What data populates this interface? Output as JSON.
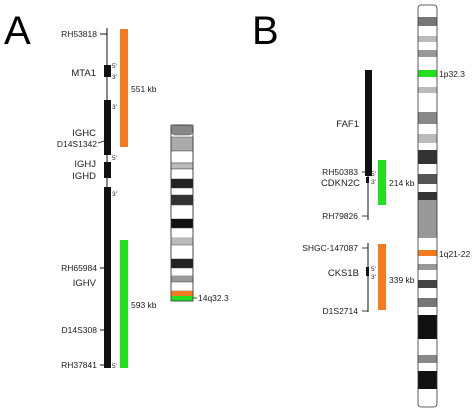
{
  "panels": {
    "a": {
      "letter": "A",
      "markers": {
        "rh53818": "RH53818",
        "d14s1342": "D14S1342",
        "rh65984": "RH65984",
        "d14s308": "D14S308",
        "rh37841": "RH37841"
      },
      "genes": {
        "mta1": "MTA1",
        "ighc": "IGHC",
        "ighj": "IGHJ",
        "ighd": "IGHD",
        "ighv": "IGHV"
      },
      "ends": {
        "five": "5'",
        "three": "3'"
      },
      "regions": {
        "orange_size": "551 kb",
        "green_size": "593 kb"
      },
      "band": "14q32.3"
    },
    "b": {
      "letter": "B",
      "markers": {
        "rh50383": "RH50383",
        "rh79826": "RH79826",
        "shgc147087": "SHGC-147087",
        "d1s2714": "D1S2714"
      },
      "genes": {
        "faf1": "FAF1",
        "cdkn2c": "CDKN2C",
        "cks1b": "CKS1B"
      },
      "ends": {
        "five": "5'",
        "three": "3'"
      },
      "regions": {
        "green_size": "214 kb",
        "orange_size": "339 kb"
      },
      "bands": {
        "p": "1p32.3",
        "q": "1q21-22"
      }
    }
  },
  "colors": {
    "orange": "#f47b20",
    "green": "#22e01e",
    "black": "#111111"
  }
}
